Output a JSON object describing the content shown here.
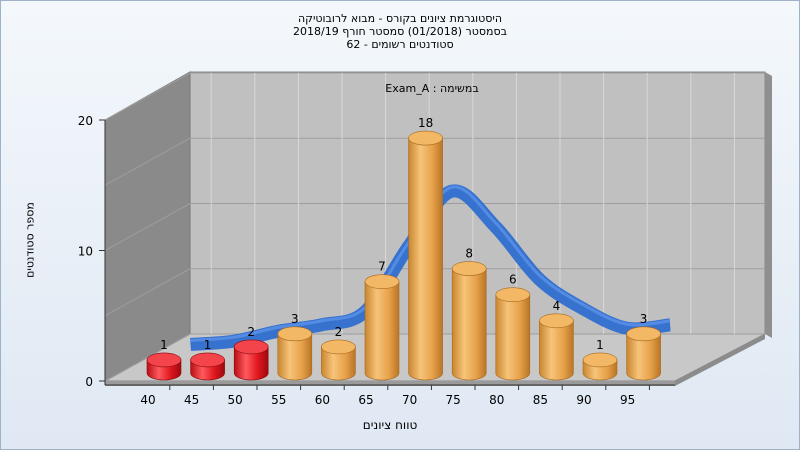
{
  "chart_data": {
    "type": "bar",
    "title_lines": [
      "היסטוגרמת ציונים בקורס - מבוא לרובוטיקה",
      "בסמסטר  (01/2018)  סמסטר חורף 2018/19",
      "סטודנטים רשומים - 62"
    ],
    "inner_label": "Exam_A : במשימה",
    "xlabel": "טווח ציונים",
    "ylabel": "מספר סטודנטים",
    "x_ticks": [
      "40",
      "45",
      "50",
      "55",
      "60",
      "65",
      "70",
      "75",
      "80",
      "85",
      "90",
      "95"
    ],
    "y_ticks": [
      "0",
      "10",
      "20"
    ],
    "ylim": [
      0,
      20
    ],
    "categories": [
      "40",
      "45",
      "50",
      "55",
      "60",
      "65",
      "70",
      "75",
      "80",
      "85",
      "90",
      "95"
    ],
    "values": [
      1,
      1,
      2,
      3,
      2,
      7,
      18,
      8,
      6,
      4,
      1,
      3
    ],
    "bar_colors": [
      "#e0151d",
      "#e0151d",
      "#e0151d",
      "#e9a649",
      "#e9a649",
      "#e9a649",
      "#e9a649",
      "#e9a649",
      "#e9a649",
      "#e9a649",
      "#e9a649",
      "#e9a649"
    ],
    "curve_color": "#2f6ed0",
    "grid": true
  }
}
